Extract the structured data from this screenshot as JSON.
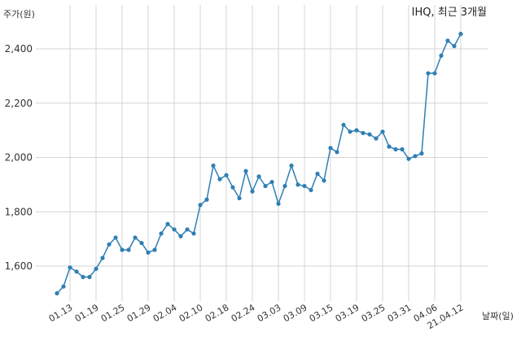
{
  "chart_data": {
    "type": "line",
    "title": "IHQ, 최근 3개월",
    "ylabel": "주가(원)",
    "xlabel": "날짜(일)",
    "ylim": [
      1450,
      2470
    ],
    "yticks": [
      1600,
      1800,
      2000,
      2200,
      2400
    ],
    "ytick_labels": [
      "1,600",
      "1,800",
      "2,000",
      "2,200",
      "2,400"
    ],
    "xtick_labels": [
      "01.13",
      "01.19",
      "01.25",
      "01.29",
      "02.04",
      "02.10",
      "02.18",
      "02.24",
      "03.03",
      "03.09",
      "03.15",
      "03.19",
      "03.25",
      "03.31",
      "04.06",
      "21.04.12"
    ],
    "grid": true,
    "line_color": "#2e7fb4",
    "series": [
      {
        "values": [
          1500,
          1525,
          1595,
          1580,
          1560,
          1560,
          1590,
          1630,
          1680,
          1705,
          1660,
          1660,
          1705,
          1685,
          1650,
          1660,
          1720,
          1755,
          1735,
          1710,
          1735,
          1720,
          1825,
          1845,
          1970,
          1920,
          1935,
          1890,
          1850,
          1950,
          1875,
          1930,
          1895,
          1910,
          1830,
          1895,
          1970,
          1900,
          1895,
          1880,
          1940,
          1915,
          2035,
          2020,
          2120,
          2095,
          2100,
          2090,
          2085,
          2070,
          2095,
          2040,
          2030,
          2030,
          1995,
          2005,
          2015,
          2310,
          2310,
          2375,
          2430,
          2410,
          2455
        ]
      }
    ]
  }
}
